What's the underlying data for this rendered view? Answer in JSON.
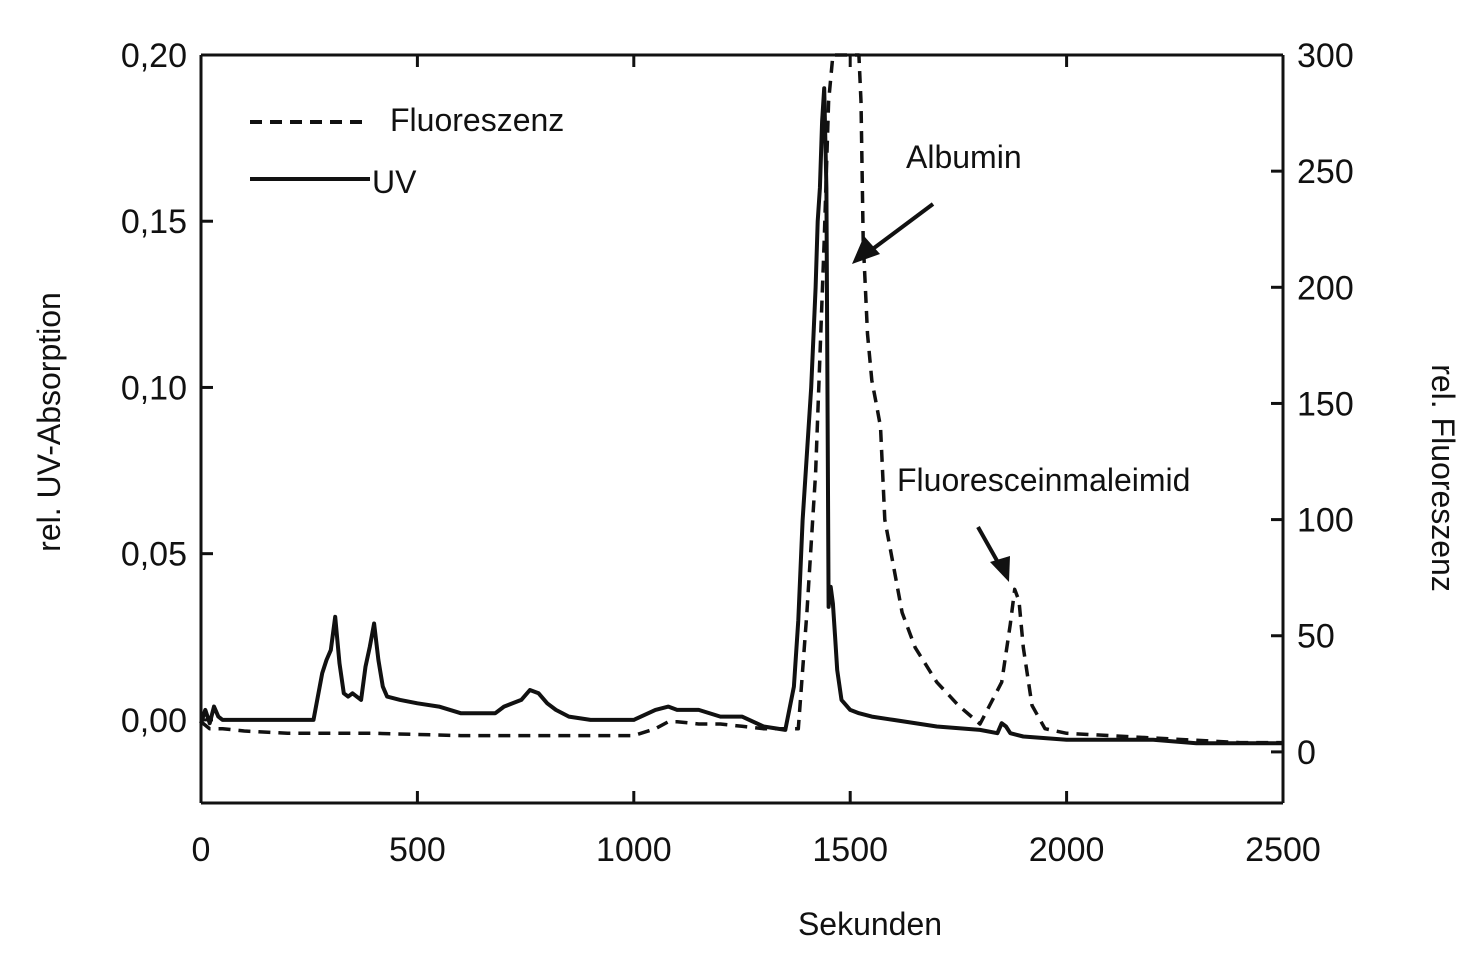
{
  "chart_data": {
    "type": "line",
    "xlabel": "Sekunden",
    "ylabel_left": "rel. UV-Absorption",
    "ylabel_right": "rel. Fluoreszenz",
    "xlim": [
      0,
      2500
    ],
    "ylim_left": [
      -0.025,
      0.2
    ],
    "ylim_right": [
      -22,
      300
    ],
    "x_ticks": [
      "0",
      "500",
      "1000",
      "1500",
      "2000",
      "2500"
    ],
    "y_left_ticks": [
      "0,00",
      "0,05",
      "0,10",
      "0,15",
      "0,20"
    ],
    "y_right_ticks": [
      "0",
      "50",
      "100",
      "150",
      "200",
      "250",
      "300"
    ],
    "grid": false,
    "legend": {
      "placement": "top-left",
      "entries": [
        {
          "label": "Fluoreszenz",
          "style": "dashed"
        },
        {
          "label": "UV",
          "style": "solid"
        }
      ]
    },
    "annotations": [
      "Albumin",
      "Fluoresceinmaleimid"
    ],
    "series": [
      {
        "name": "UV",
        "axis": "left",
        "style": "solid",
        "x": [
          0,
          10,
          20,
          30,
          40,
          50,
          80,
          150,
          200,
          260,
          280,
          290,
          300,
          310,
          320,
          330,
          340,
          350,
          370,
          380,
          390,
          400,
          410,
          420,
          430,
          460,
          500,
          550,
          600,
          650,
          680,
          700,
          720,
          740,
          760,
          780,
          800,
          820,
          850,
          900,
          950,
          1000,
          1050,
          1080,
          1100,
          1150,
          1200,
          1250,
          1300,
          1350,
          1370,
          1380,
          1390,
          1400,
          1410,
          1420,
          1425,
          1430,
          1435,
          1440,
          1445,
          1450,
          1455,
          1460,
          1465,
          1470,
          1480,
          1500,
          1520,
          1550,
          1600,
          1700,
          1800,
          1840,
          1850,
          1860,
          1870,
          1900,
          2000,
          2100,
          2200,
          2300,
          2400,
          2500
        ],
        "y": [
          -0.001,
          0.003,
          -0.001,
          0.004,
          0.001,
          0.0,
          0.0,
          0.0,
          0.0,
          0.0,
          0.014,
          0.018,
          0.021,
          0.031,
          0.017,
          0.008,
          0.007,
          0.008,
          0.006,
          0.016,
          0.022,
          0.029,
          0.018,
          0.01,
          0.007,
          0.006,
          0.005,
          0.004,
          0.002,
          0.002,
          0.002,
          0.004,
          0.005,
          0.006,
          0.009,
          0.008,
          0.005,
          0.003,
          0.001,
          0.0,
          0.0,
          0.0,
          0.003,
          0.004,
          0.003,
          0.003,
          0.001,
          0.001,
          -0.002,
          -0.003,
          0.01,
          0.03,
          0.06,
          0.08,
          0.1,
          0.13,
          0.15,
          0.16,
          0.18,
          0.19,
          0.16,
          0.034,
          0.04,
          0.035,
          0.025,
          0.015,
          0.006,
          0.003,
          0.002,
          0.001,
          0.0,
          -0.002,
          -0.003,
          -0.004,
          -0.001,
          -0.002,
          -0.004,
          -0.005,
          -0.006,
          -0.006,
          -0.006,
          -0.007,
          -0.007,
          -0.007
        ]
      },
      {
        "name": "Fluoreszenz",
        "axis": "right",
        "style": "dashed",
        "x": [
          0,
          20,
          50,
          100,
          200,
          400,
          600,
          800,
          1000,
          1050,
          1080,
          1100,
          1150,
          1200,
          1250,
          1300,
          1350,
          1380,
          1400,
          1420,
          1440,
          1450,
          1460,
          1470,
          1480,
          1490,
          1500,
          1510,
          1520,
          1525,
          1530,
          1540,
          1550,
          1560,
          1570,
          1580,
          1600,
          1620,
          1650,
          1700,
          1750,
          1800,
          1850,
          1870,
          1880,
          1890,
          1900,
          1920,
          1950,
          2000,
          2100,
          2200,
          2300,
          2400,
          2500
        ],
        "y": [
          13,
          10,
          10,
          9,
          8,
          8,
          7,
          7,
          7,
          10,
          13,
          13,
          12,
          12,
          11,
          10,
          10,
          10,
          60,
          120,
          220,
          280,
          300,
          300,
          300,
          300,
          300,
          300,
          300,
          280,
          220,
          180,
          160,
          150,
          140,
          100,
          80,
          60,
          45,
          30,
          20,
          12,
          30,
          55,
          70,
          65,
          45,
          20,
          10,
          8,
          7,
          6,
          5,
          4,
          4
        ]
      }
    ]
  }
}
